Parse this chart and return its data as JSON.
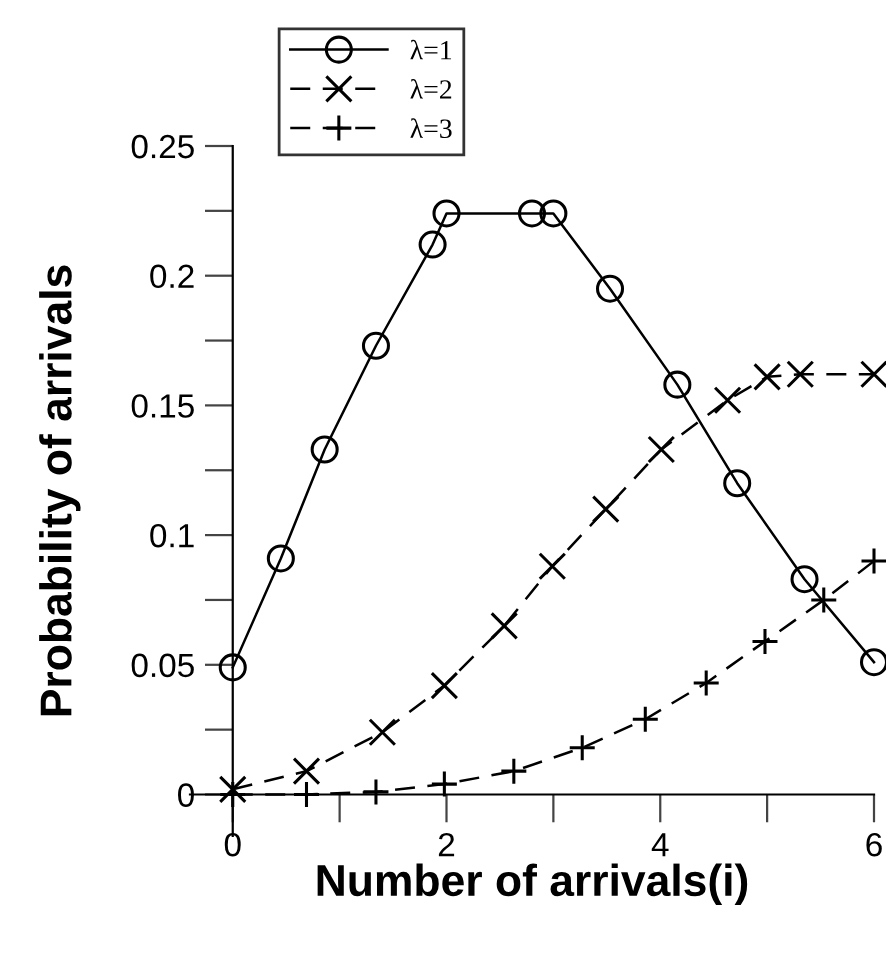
{
  "chart_data": {
    "type": "line",
    "xlabel": "Number of arrivals(i)",
    "ylabel": "Probability of arrivals",
    "xlim": [
      -0.4,
      6
    ],
    "ylim": [
      -0.016,
      0.25
    ],
    "xticks": [
      0,
      {
        "value": 1,
        "label": null
      },
      2,
      {
        "value": 3,
        "label": null
      },
      4,
      {
        "value": 5,
        "label": null
      },
      6
    ],
    "yticks": [
      0,
      {
        "value": 0.025,
        "label": null
      },
      0.05,
      {
        "value": 0.075,
        "label": null
      },
      0.1,
      {
        "value": 0.125,
        "label": null
      },
      0.15,
      {
        "value": 0.175,
        "label": null
      },
      0.2,
      {
        "value": 0.225,
        "label": null
      },
      0.25
    ],
    "grid": false,
    "legend": "top left",
    "series": [
      {
        "name": "λ=1",
        "color": "#000000",
        "marker": "circle",
        "line_style": "solid",
        "x": [
          0,
          0.45,
          0.86,
          1.34,
          1.87,
          2,
          2.8,
          3,
          3.53,
          4.16,
          4.72,
          5.35,
          6
        ],
        "values": [
          0.049,
          0.091,
          0.133,
          0.173,
          0.212,
          0.224,
          0.224,
          0.224,
          0.195,
          0.158,
          0.12,
          0.083,
          0.051
        ]
      },
      {
        "name": "λ=2",
        "color": "#000000",
        "marker": "cross",
        "line_style": "dashed",
        "x": [
          0,
          0.69,
          1.4,
          1.98,
          2.54,
          2.99,
          3.49,
          4.01,
          4.63,
          5,
          5.31,
          6
        ],
        "values": [
          0.002,
          0.009,
          0.024,
          0.042,
          0.065,
          0.088,
          0.11,
          0.133,
          0.152,
          0.161,
          0.162,
          0.162
        ]
      },
      {
        "name": "λ=3",
        "color": "#000000",
        "marker": "cross",
        "line_style": "dashed",
        "x": [
          0,
          0.69,
          1.34,
          1.98,
          2.63,
          3.27,
          3.86,
          4.43,
          4.98,
          5.53,
          6
        ],
        "values": [
          0,
          0,
          0.001,
          0.004,
          0.009,
          0.018,
          0.029,
          0.043,
          0.059,
          0.075,
          0.09
        ]
      }
    ]
  }
}
